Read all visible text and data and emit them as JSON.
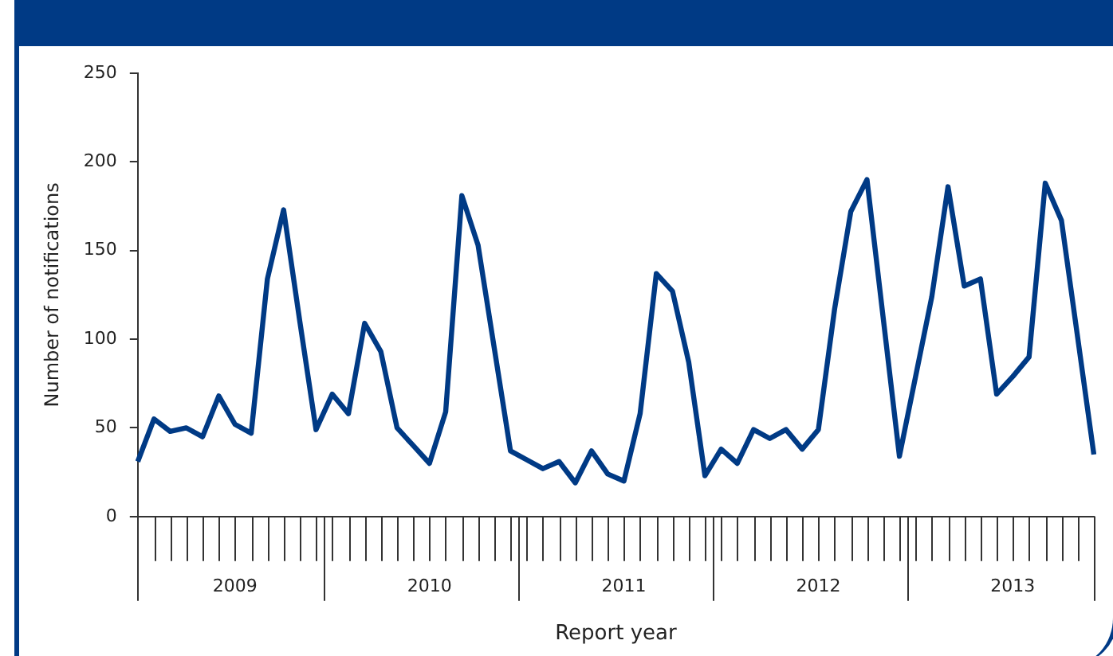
{
  "chart_data": {
    "type": "line",
    "xlabel": "Report year",
    "ylabel": "Number of notifications",
    "categories": [
      null,
      null,
      null,
      null,
      null,
      null,
      "2009",
      null,
      null,
      null,
      null,
      null,
      null,
      null,
      null,
      null,
      null,
      null,
      "2010",
      null,
      null,
      null,
      null,
      null,
      null,
      null,
      null,
      null,
      null,
      null,
      "2011",
      null,
      null,
      null,
      null,
      null,
      null,
      null,
      null,
      null,
      null,
      null,
      "2012",
      null,
      null,
      null,
      null,
      null,
      null,
      null,
      null,
      null,
      null,
      null,
      "2013",
      null,
      null,
      null,
      null,
      null
    ],
    "values": [
      31,
      55,
      48,
      50,
      45,
      68,
      52,
      47,
      134,
      173,
      110,
      49,
      69,
      58,
      109,
      93,
      50,
      40,
      30,
      59,
      181,
      153,
      95,
      37,
      32,
      27,
      31,
      19,
      37,
      24,
      20,
      58,
      137,
      127,
      87,
      23,
      38,
      30,
      49,
      44,
      49,
      38,
      49,
      117,
      172,
      190,
      112,
      34,
      79,
      124,
      186,
      130,
      134,
      69,
      79,
      90,
      188,
      167,
      101,
      35
    ],
    "color": "#003a85",
    "ylim": [
      0,
      250
    ],
    "yticks": [
      0,
      50,
      100,
      150,
      200,
      250
    ],
    "grid": false,
    "legend": false,
    "marker": "none",
    "line_style": "solid"
  }
}
